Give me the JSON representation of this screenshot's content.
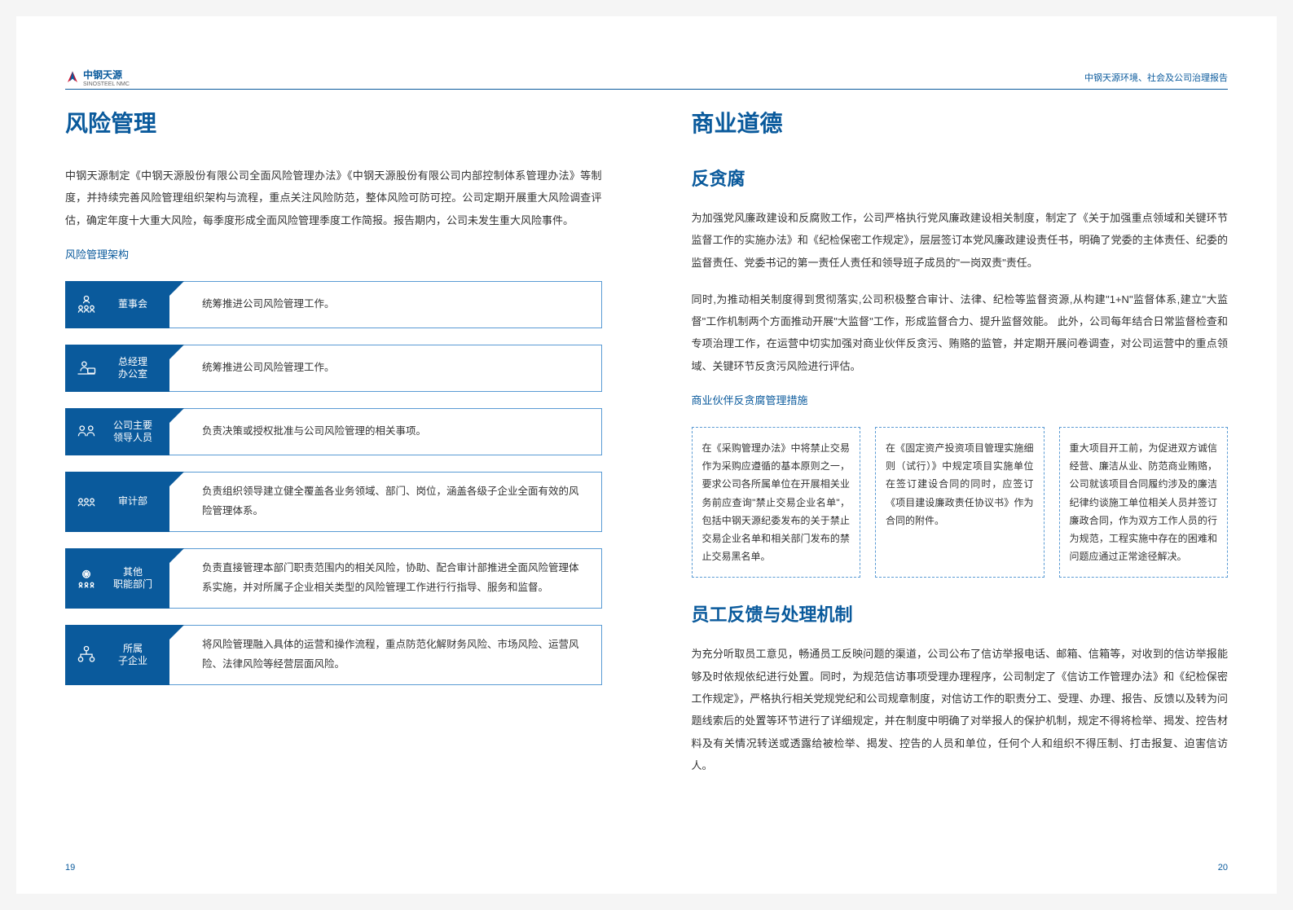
{
  "header": {
    "logo_cn": "中钢天源",
    "logo_en": "SINOSTEEL NMC",
    "right": "中钢天源环境、社会及公司治理报告"
  },
  "left": {
    "title": "风险管理",
    "intro": "中钢天源制定《中钢天源股份有限公司全面风险管理办法》《中钢天源股份有限公司内部控制体系管理办法》等制度，并持续完善风险管理组织架构与流程，重点关注风险防范，整体风险可防可控。公司定期开展重大风险调查评估，确定年度十大重大风险，每季度形成全面风险管理季度工作简报。报告期内，公司未发生重大风险事件。",
    "subhead": "风险管理架构",
    "org": [
      {
        "name": "董事会",
        "desc": "统筹推进公司风险管理工作。",
        "icon": "board"
      },
      {
        "name": "总经理\n办公室",
        "desc": "统筹推进公司风险管理工作。",
        "icon": "office"
      },
      {
        "name": "公司主要\n领导人员",
        "desc": "负责决策或授权批准与公司风险管理的相关事项。",
        "icon": "leaders"
      },
      {
        "name": "审计部",
        "desc": "负责组织领导建立健全覆盖各业务领域、部门、岗位，涵盖各级子企业全面有效的风险管理体系。",
        "icon": "audit",
        "tall": true
      },
      {
        "name": "其他\n职能部门",
        "desc": "负责直接管理本部门职责范围内的相关风险，协助、配合审计部推进全面风险管理体系实施，并对所属子企业相关类型的风险管理工作进行行指导、服务和监督。",
        "icon": "dept",
        "tall": true
      },
      {
        "name": "所属\n子企业",
        "desc": "将风险管理融入具体的运营和操作流程，重点防范化解财务风险、市场风险、运营风险、法律风险等经营层面风险。",
        "icon": "sub",
        "tall": true
      }
    ]
  },
  "right": {
    "title": "商业道德",
    "section1": {
      "heading": "反贪腐",
      "p1": "为加强党风廉政建设和反腐败工作，公司严格执行党风廉政建设相关制度，制定了《关于加强重点领域和关键环节监督工作的实施办法》和《纪检保密工作规定》，层层签订本党风廉政建设责任书，明确了党委的主体责任、纪委的监督责任、党委书记的第一责任人责任和领导班子成员的\"一岗双责\"责任。",
      "p2": "同时,为推动相关制度得到贯彻落实,公司积极整合审计、法律、纪检等监督资源,从构建\"1+N\"监督体系,建立\"大监督\"工作机制两个方面推动开展\"大监督\"工作，形成监督合力、提升监督效能。\n此外，公司每年结合日常监督检查和专项治理工作，在运营中切实加强对商业伙伴反贪污、贿赂的监管，并定期开展问卷调查，对公司运营中的重点领域、关键环节反贪污风险进行评估。",
      "subhead": "商业伙伴反贪腐管理措施",
      "measures": [
        "在《采购管理办法》中将禁止交易作为采购应遵循的基本原则之一，要求公司各所属单位在开展相关业务前应查询\"禁止交易企业名单\"，包括中钢天源纪委发布的关于禁止交易企业名单和相关部门发布的禁止交易黑名单。",
        "在《固定资产投资项目管理实施细则（试行）》中规定项目实施单位在签订建设合同的同时，应签订《项目建设廉政责任协议书》作为合同的附件。",
        "重大项目开工前，为促进双方诚信经营、廉洁从业、防范商业贿赂，公司就该项目合同履约涉及的廉洁纪律约谈施工单位相关人员并签订廉政合同，作为双方工作人员的行为规范，工程实施中存在的困难和问题应通过正常途径解决。"
      ]
    },
    "section2": {
      "heading": "员工反馈与处理机制",
      "p1": "为充分听取员工意见，畅通员工反映问题的渠道，公司公布了信访举报电话、邮箱、信箱等，对收到的信访举报能够及时依规依纪进行处置。同时，为规范信访事项受理办理程序，公司制定了《信访工作管理办法》和《纪检保密工作规定》，严格执行相关党规党纪和公司规章制度，对信访工作的职责分工、受理、办理、报告、反馈以及转为问题线索后的处置等环节进行了详细规定，并在制度中明确了对举报人的保护机制，规定不得将检举、揭发、控告材料及有关情况转送或透露给被检举、揭发、控告的人员和单位，任何个人和组织不得压制、打击报复、迫害信访人。"
    }
  },
  "page_left": "19",
  "page_right": "20",
  "colors": {
    "primary": "#0a5a9c",
    "border": "#5a9bd4",
    "text": "#333333"
  }
}
